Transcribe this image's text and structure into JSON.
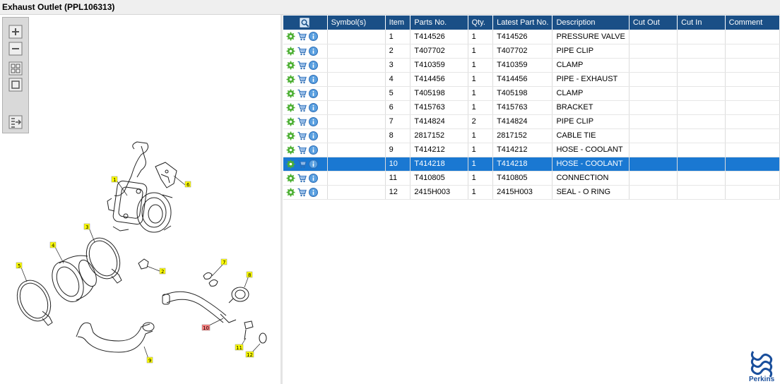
{
  "window": {
    "title": "Exhaust Outlet (PPL106313)"
  },
  "toolbar": {
    "buttons": [
      {
        "name": "zoom-in-button",
        "icon": "plus-icon"
      },
      {
        "name": "zoom-out-button",
        "icon": "minus-icon"
      },
      {
        "name": "fit-all-button",
        "icon": "grid-icon"
      },
      {
        "name": "actual-size-button",
        "icon": "square-icon"
      },
      {
        "name": "export-button",
        "icon": "list-arrow-icon"
      }
    ]
  },
  "diagram": {
    "callouts": [
      "1",
      "2",
      "3",
      "4",
      "5",
      "6",
      "7",
      "8",
      "9",
      "10",
      "11",
      "12"
    ],
    "highlighted_callout": "10",
    "callout_color": "#ffff00",
    "highlight_color": "#ff7f7f"
  },
  "table": {
    "columns": [
      "Symbol(s)",
      "Item",
      "Parts No.",
      "Qty.",
      "Latest Part No.",
      "Description",
      "Cut Out",
      "Cut In",
      "Comment"
    ],
    "rows": [
      {
        "item": "1",
        "part_no": "T414526",
        "qty": "1",
        "latest": "T414526",
        "desc": "PRESSURE VALVE"
      },
      {
        "item": "2",
        "part_no": "T407702",
        "qty": "1",
        "latest": "T407702",
        "desc": "PIPE CLIP"
      },
      {
        "item": "3",
        "part_no": "T410359",
        "qty": "1",
        "latest": "T410359",
        "desc": "CLAMP"
      },
      {
        "item": "4",
        "part_no": "T414456",
        "qty": "1",
        "latest": "T414456",
        "desc": "PIPE - EXHAUST"
      },
      {
        "item": "5",
        "part_no": "T405198",
        "qty": "1",
        "latest": "T405198",
        "desc": "CLAMP"
      },
      {
        "item": "6",
        "part_no": "T415763",
        "qty": "1",
        "latest": "T415763",
        "desc": "BRACKET"
      },
      {
        "item": "7",
        "part_no": "T414824",
        "qty": "2",
        "latest": "T414824",
        "desc": "PIPE CLIP"
      },
      {
        "item": "8",
        "part_no": "2817152",
        "qty": "1",
        "latest": "2817152",
        "desc": "CABLE TIE"
      },
      {
        "item": "9",
        "part_no": "T414212",
        "qty": "1",
        "latest": "T414212",
        "desc": "HOSE - COOLANT"
      },
      {
        "item": "10",
        "part_no": "T414218",
        "qty": "1",
        "latest": "T414218",
        "desc": "HOSE - COOLANT"
      },
      {
        "item": "11",
        "part_no": "T410805",
        "qty": "1",
        "latest": "T410805",
        "desc": "CONNECTION"
      },
      {
        "item": "12",
        "part_no": "2415H003",
        "qty": "1",
        "latest": "2415H003",
        "desc": "SEAL - O RING"
      }
    ],
    "selected_item": "10",
    "row_icons": [
      "gear-icon",
      "cart-icon",
      "info-icon"
    ],
    "header_color": "#1a4f86",
    "selection_color": "#1a78d2"
  },
  "brand": {
    "name": "Perkins",
    "color": "#1a4f9c"
  }
}
